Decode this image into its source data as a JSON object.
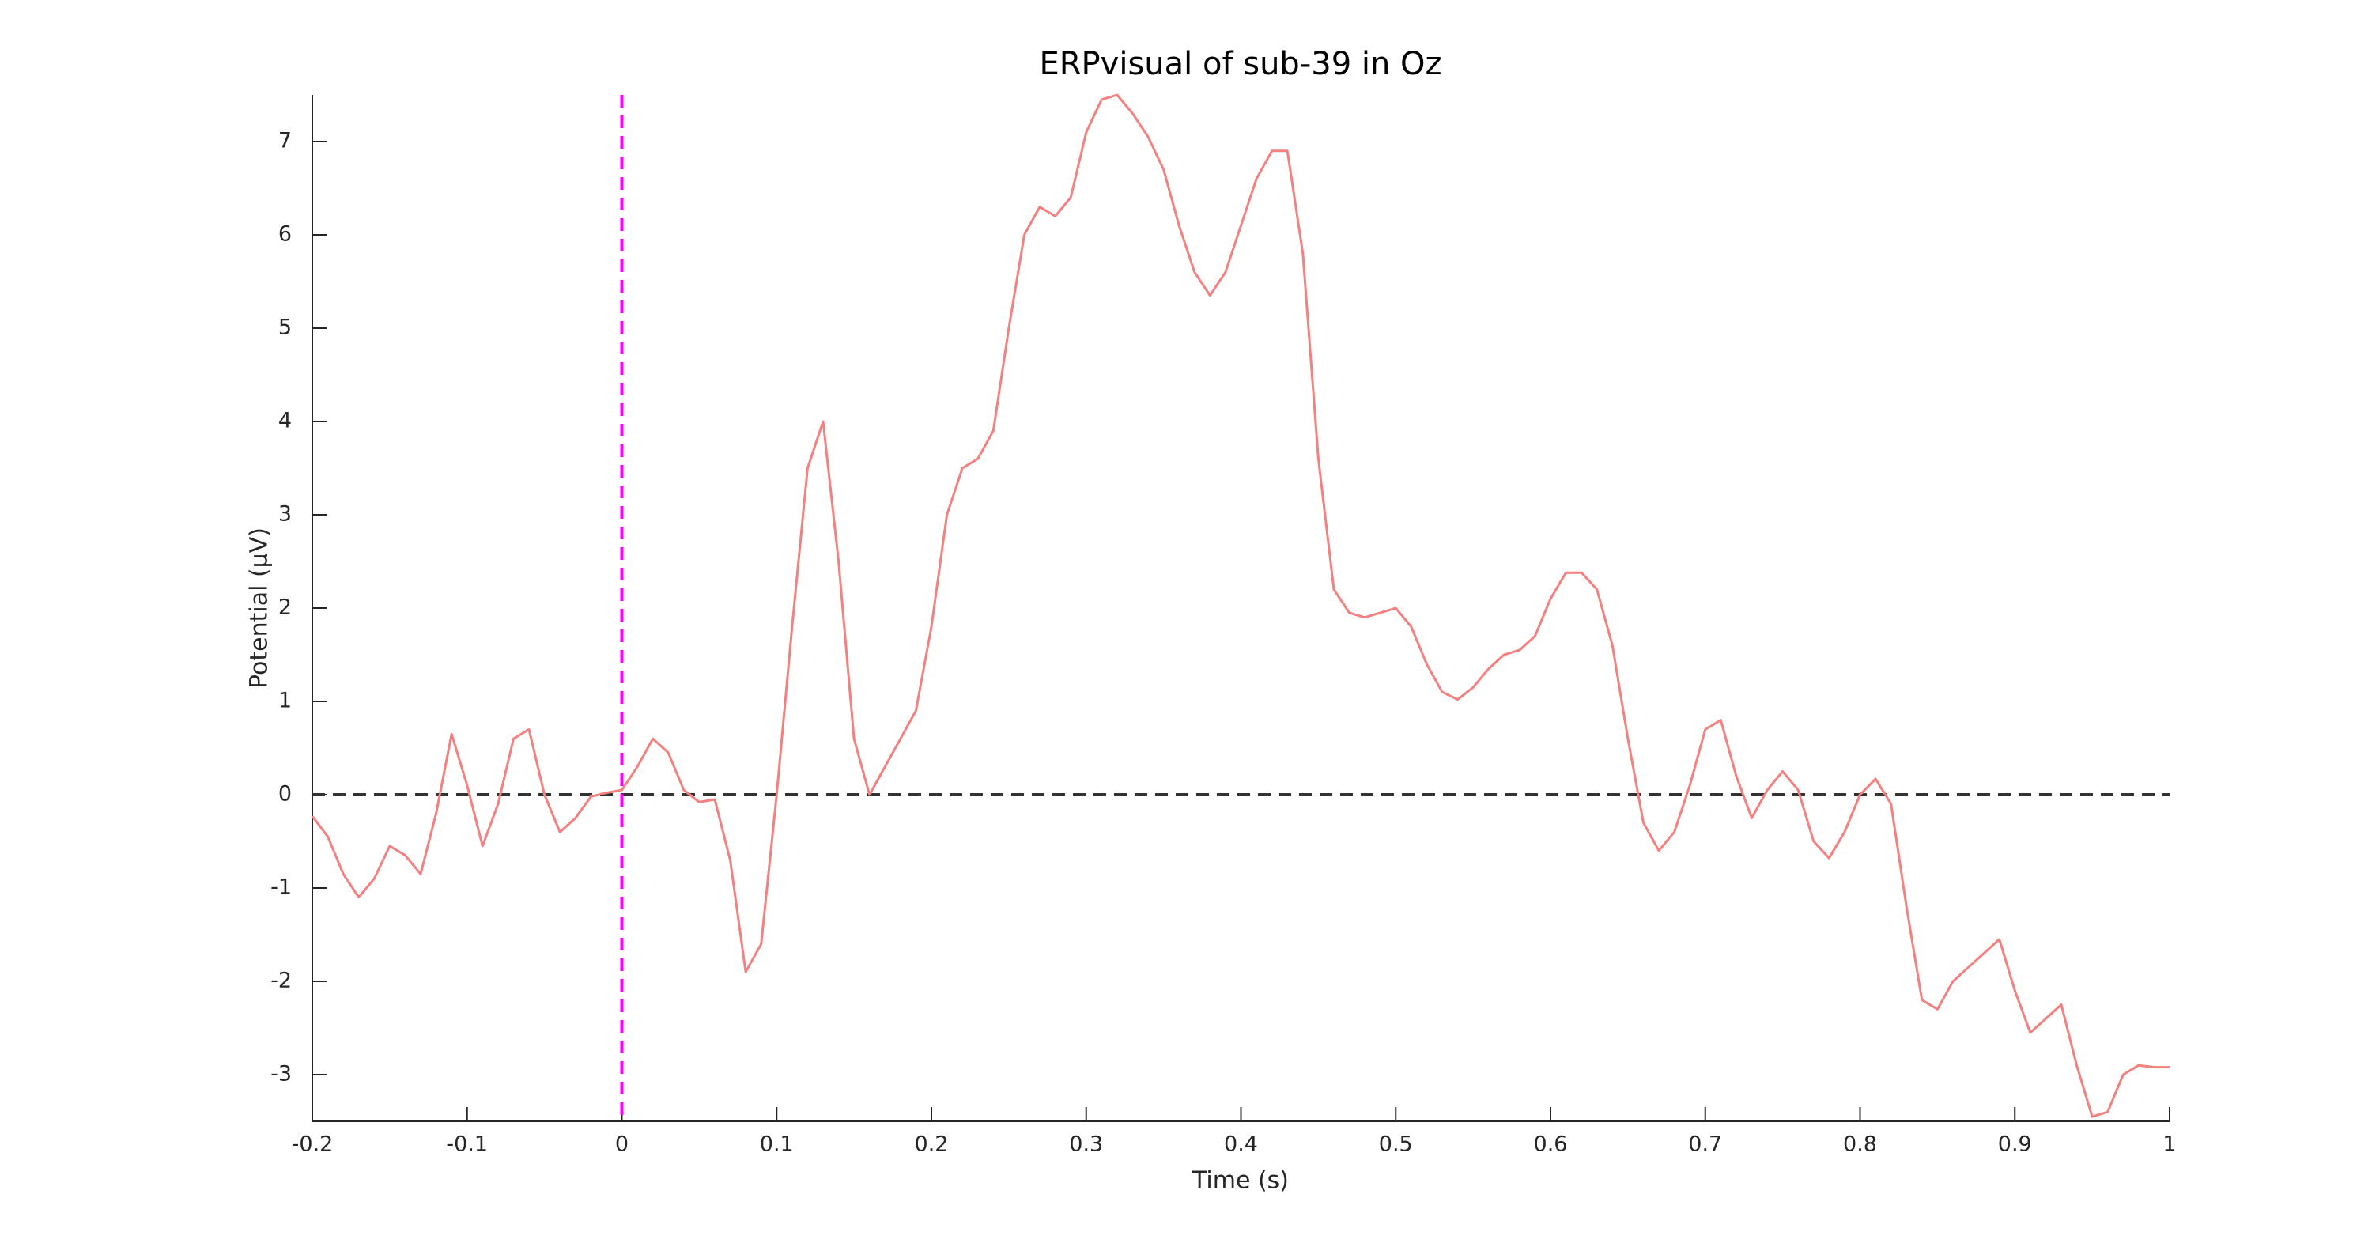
{
  "chart_data": {
    "type": "line",
    "title": "ERPvisual of sub-39 in Oz",
    "x_label": "Time (s)",
    "y_label": "Potential (μV)",
    "x": [
      -0.2,
      -0.19,
      -0.18,
      -0.17,
      -0.16,
      -0.15,
      -0.14,
      -0.13,
      -0.12,
      -0.11,
      -0.1,
      -0.09,
      -0.08,
      -0.07,
      -0.06,
      -0.05,
      -0.04,
      -0.03,
      -0.02,
      -0.01,
      0,
      0.01,
      0.02,
      0.03,
      0.04,
      0.05,
      0.06,
      0.07,
      0.08,
      0.09,
      0.1,
      0.11,
      0.12,
      0.13,
      0.14,
      0.15,
      0.16,
      0.17,
      0.18,
      0.19,
      0.2,
      0.21,
      0.22,
      0.23,
      0.24,
      0.25,
      0.26,
      0.27,
      0.28,
      0.29,
      0.3,
      0.31,
      0.32,
      0.33,
      0.34,
      0.35,
      0.36,
      0.37,
      0.38,
      0.39,
      0.4,
      0.41,
      0.42,
      0.43,
      0.44,
      0.45,
      0.46,
      0.47,
      0.48,
      0.49,
      0.5,
      0.51,
      0.52,
      0.53,
      0.54,
      0.55,
      0.56,
      0.57,
      0.58,
      0.59,
      0.6,
      0.61,
      0.62,
      0.63,
      0.64,
      0.65,
      0.66,
      0.67,
      0.68,
      0.69,
      0.7,
      0.71,
      0.72,
      0.73,
      0.74,
      0.75,
      0.76,
      0.77,
      0.78,
      0.79,
      0.8,
      0.81,
      0.82,
      0.83,
      0.84,
      0.85,
      0.86,
      0.87,
      0.88,
      0.89,
      0.9,
      0.91,
      0.92,
      0.93,
      0.94,
      0.95,
      0.96,
      0.97,
      0.98,
      0.99,
      1
    ],
    "series": [
      {
        "color": "#f4807f",
        "values": [
          -0.23,
          -0.45,
          -0.85,
          -1.1,
          -0.9,
          -0.55,
          -0.65,
          -0.85,
          -0.2,
          0.65,
          0.1,
          -0.55,
          -0.1,
          0.6,
          0.7,
          0.0,
          -0.4,
          -0.25,
          -0.02,
          0.02,
          0.05,
          0.3,
          0.6,
          0.45,
          0.05,
          -0.08,
          -0.05,
          -0.7,
          -1.9,
          -1.6,
          0.0,
          1.8,
          3.5,
          4.0,
          2.5,
          0.6,
          0.0,
          0.3,
          0.6,
          0.9,
          1.8,
          3.0,
          3.5,
          3.6,
          3.9,
          5.0,
          6.0,
          6.3,
          6.2,
          6.4,
          7.1,
          7.45,
          7.5,
          7.3,
          7.05,
          6.7,
          6.1,
          5.6,
          5.35,
          5.6,
          6.1,
          6.6,
          6.9,
          6.9,
          5.8,
          3.6,
          2.2,
          1.95,
          1.9,
          1.95,
          2.0,
          1.8,
          1.4,
          1.1,
          1.02,
          1.15,
          1.35,
          1.5,
          1.55,
          1.7,
          2.1,
          2.38,
          2.38,
          2.2,
          1.6,
          0.6,
          -0.3,
          -0.6,
          -0.4,
          0.1,
          0.7,
          0.8,
          0.2,
          -0.25,
          0.05,
          0.25,
          0.05,
          -0.5,
          -0.68,
          -0.4,
          0.0,
          0.17,
          -0.1,
          -1.2,
          -2.2,
          -2.3,
          -2.0,
          -1.85,
          -1.7,
          -1.55,
          -2.1,
          -2.55,
          -2.4,
          -2.25,
          -2.9,
          -3.45,
          -3.4,
          -3.0,
          -2.9,
          -2.92,
          -2.92
        ]
      }
    ],
    "xlim": [
      -0.2,
      1
    ],
    "xticks": [
      -0.2,
      -0.1,
      0,
      0.1,
      0.2,
      0.3,
      0.4,
      0.5,
      0.6,
      0.7,
      0.8,
      0.9,
      1
    ],
    "ylim": [
      -3.5,
      7.5
    ],
    "yticks": [
      -3,
      -2,
      -1,
      0,
      1,
      2,
      3,
      4,
      5,
      6,
      7
    ],
    "reference_lines": [
      {
        "axis": "y",
        "value": 0,
        "color": "#333333"
      },
      {
        "axis": "x",
        "value": 0,
        "color": "#ff00ff"
      }
    ]
  }
}
